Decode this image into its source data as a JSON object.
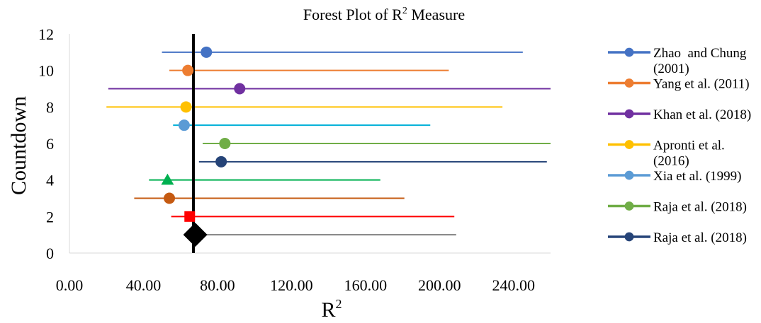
{
  "chart_data": {
    "type": "forest",
    "title": "Forest Plot of R",
    "title_sup": "2",
    "title_tail": " Measure",
    "xlabel": "R",
    "xlabel_sup": "2",
    "ylabel": "Countdown",
    "xlim": [
      0,
      260
    ],
    "ylim": [
      0,
      12
    ],
    "xticks": [
      0,
      40,
      80,
      120,
      160,
      200,
      240
    ],
    "xtick_labels": [
      "0.00",
      "40.00",
      "80.00",
      "120.00",
      "160.00",
      "200.00",
      "240.00"
    ],
    "yticks": [
      0,
      2,
      4,
      6,
      8,
      10,
      12
    ],
    "ytick_labels": [
      "0",
      "2",
      "4",
      "6",
      "8",
      "10",
      "12"
    ],
    "reference_line_x": 67,
    "grid": false,
    "legend_position": "right",
    "series": [
      {
        "name": "Zhao  and Chung\n(2001)",
        "y": 11,
        "point": 74,
        "low": 50,
        "high": 245,
        "color": "#4472c4",
        "marker": "circle",
        "in_legend": true
      },
      {
        "name": "Yang et al. (2011)",
        "y": 10,
        "point": 64,
        "low": 54,
        "high": 205,
        "color": "#ed7d31",
        "marker": "circle",
        "in_legend": true
      },
      {
        "name": "Khan et al. (2018)",
        "y": 9,
        "point": 92,
        "low": 21,
        "high": 260,
        "color": "#7030a0",
        "marker": "circle",
        "in_legend": true
      },
      {
        "name": "Apronti et al.\n(2016)",
        "y": 8,
        "point": 63,
        "low": 20,
        "high": 234,
        "color": "#ffc000",
        "marker": "circle",
        "in_legend": true
      },
      {
        "name": "Xia et al. (1999)",
        "y": 7,
        "point": 62,
        "low": 56,
        "high": 195,
        "color": "#5b9bd5",
        "line_color": "#00b0d8",
        "marker": "circle",
        "in_legend": true
      },
      {
        "name": "Raja et al. (2018)",
        "y": 6,
        "point": 84,
        "low": 72,
        "high": 260,
        "color": "#70ad47",
        "marker": "circle",
        "in_legend": true
      },
      {
        "name": "Raja et al. (2018)",
        "y": 5,
        "point": 82,
        "low": 70,
        "high": 258,
        "color": "#264478",
        "marker": "circle",
        "in_legend": true
      },
      {
        "name": "",
        "y": 4,
        "point": 53,
        "low": 43,
        "high": 168,
        "color": "#00b050",
        "marker": "triangle",
        "in_legend": false
      },
      {
        "name": "",
        "y": 3,
        "point": 54,
        "low": 35,
        "high": 181,
        "color": "#c55a11",
        "marker": "circle",
        "in_legend": false
      },
      {
        "name": "",
        "y": 2,
        "point": 65,
        "low": 55,
        "high": 208,
        "color": "#ff0000",
        "marker": "square",
        "in_legend": false
      },
      {
        "name": "",
        "y": 1,
        "point": 68,
        "low": 68,
        "high": 209,
        "color": "#000000",
        "line_color": "#808080",
        "marker": "diamond",
        "in_legend": false
      }
    ]
  }
}
